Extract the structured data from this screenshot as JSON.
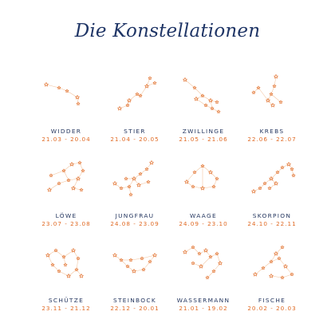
{
  "title": "Die Konstellationen",
  "colors": {
    "title": "#1f3566",
    "name": "#24365f",
    "dates": "#e06a24",
    "star": "#e06a24",
    "line": "#f2c39d"
  },
  "signs": [
    {
      "name": "WIDDER",
      "dates": "21.03 - 20.04"
    },
    {
      "name": "STIER",
      "dates": "21.04 - 20.05"
    },
    {
      "name": "ZWILLINGE",
      "dates": "21.05 - 21.06"
    },
    {
      "name": "KREBS",
      "dates": "22.06 - 22.07"
    },
    {
      "name": "LÖWE",
      "dates": "23.07 - 23.08"
    },
    {
      "name": "JUNGFRAU",
      "dates": "24.08 - 23.09"
    },
    {
      "name": "WAAGE",
      "dates": "24.09 - 23.10"
    },
    {
      "name": "SKORPION",
      "dates": "24.10 - 22.11"
    },
    {
      "name": "SCHÜTZE",
      "dates": "23.11 - 21.12"
    },
    {
      "name": "STEINBOCK",
      "dates": "22.12 - 20.01"
    },
    {
      "name": "WASSERMANN",
      "dates": "21.01 - 19.02"
    },
    {
      "name": "FISCHE",
      "dates": "20.02 - 20.03"
    }
  ]
}
